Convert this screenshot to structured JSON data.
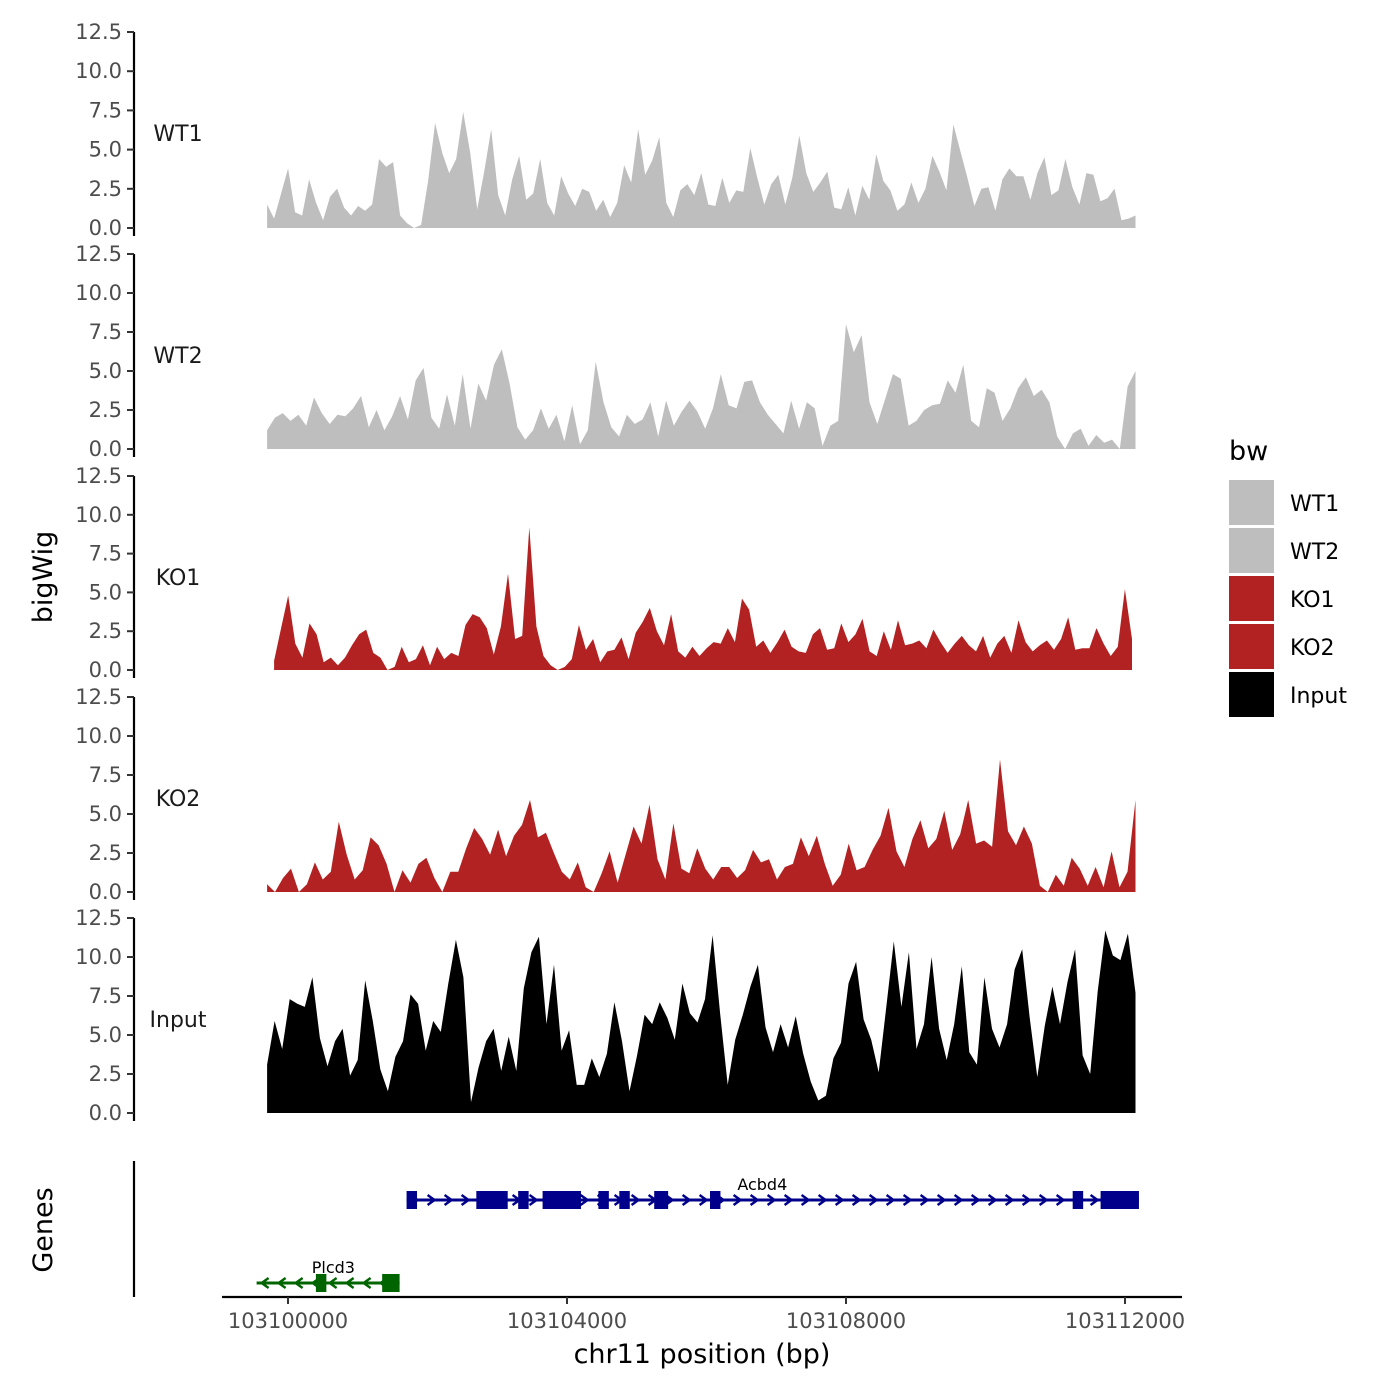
{
  "chart_data": {
    "type": "area",
    "chromosome_axis": {
      "label": "chr11 position (bp)",
      "xlim": [
        103099000,
        103113000
      ],
      "ticks": [
        103100000,
        103104000,
        103108000,
        103112000
      ]
    },
    "y_axis": {
      "label": "bigWig",
      "ylim": [
        0,
        12.5
      ],
      "ticks": [
        0.0,
        2.5,
        5.0,
        7.5,
        10.0,
        12.5
      ],
      "tick_labels": [
        "0.0",
        "2.5",
        "5.0",
        "7.5",
        "10.0",
        "12.5"
      ]
    },
    "genes_label": "Genes",
    "legend": {
      "title": "bw",
      "position": "right",
      "entries": [
        {
          "label": "WT1",
          "color": "#bebebe"
        },
        {
          "label": "WT2",
          "color": "#bebebe"
        },
        {
          "label": "KO1",
          "color": "#b22222"
        },
        {
          "label": "KO2",
          "color": "#b22222"
        },
        {
          "label": "Input",
          "color": "#000000"
        }
      ]
    },
    "series": [
      {
        "name": "WT1",
        "color": "#bebebe",
        "x_start": 103099700,
        "x_end": 103112150,
        "values": [
          1.5,
          0.6,
          2.2,
          3.8,
          1.0,
          0.8,
          3.1,
          1.6,
          0.5,
          2.0,
          2.5,
          1.3,
          0.8,
          1.4,
          1.1,
          1.5,
          4.4,
          3.9,
          4.2,
          0.8,
          0.3,
          0.0,
          0.2,
          3.0,
          6.7,
          4.8,
          3.5,
          4.4,
          7.4,
          4.8,
          1.2,
          3.6,
          6.3,
          2.1,
          0.8,
          3.1,
          4.6,
          1.8,
          2.2,
          4.4,
          1.6,
          0.8,
          3.3,
          2.2,
          1.4,
          2.5,
          2.3,
          1.1,
          1.8,
          0.7,
          1.6,
          4.0,
          2.9,
          6.3,
          3.4,
          4.3,
          5.8,
          1.6,
          0.7,
          2.4,
          2.8,
          2.1,
          3.5,
          1.5,
          1.4,
          3.2,
          1.6,
          2.4,
          2.3,
          5.1,
          3.2,
          1.5,
          2.8,
          3.4,
          1.5,
          3.2,
          5.9,
          3.5,
          2.3,
          2.9,
          3.6,
          1.3,
          1.2,
          2.6,
          0.8,
          2.7,
          1.8,
          4.7,
          3.0,
          2.4,
          1.1,
          1.5,
          2.9,
          1.6,
          2.5,
          4.6,
          3.6,
          2.4,
          6.6,
          4.9,
          3.2,
          1.4,
          2.5,
          2.6,
          1.1,
          3.1,
          3.8,
          3.3,
          3.3,
          1.8,
          3.5,
          4.5,
          2.1,
          2.4,
          4.4,
          2.6,
          1.5,
          3.5,
          3.4,
          1.7,
          1.9,
          2.5,
          0.5,
          0.6,
          0.8
        ]
      },
      {
        "name": "WT2",
        "color": "#bebebe",
        "x_start": 103099700,
        "x_end": 103112150,
        "values": [
          1.2,
          2.0,
          2.3,
          1.8,
          2.2,
          1.5,
          3.3,
          2.3,
          1.6,
          2.2,
          2.1,
          2.6,
          3.4,
          1.4,
          2.5,
          1.2,
          2.1,
          3.4,
          1.9,
          4.4,
          5.2,
          2.0,
          1.3,
          3.5,
          1.5,
          4.8,
          1.3,
          4.2,
          3.1,
          5.4,
          6.4,
          4.2,
          1.4,
          0.6,
          1.2,
          2.6,
          1.3,
          2.2,
          0.5,
          2.8,
          0.3,
          1.2,
          5.6,
          3.0,
          1.4,
          0.8,
          2.2,
          1.6,
          1.9,
          3.0,
          0.8,
          3.1,
          1.5,
          2.4,
          3.1,
          2.4,
          1.3,
          2.6,
          4.8,
          2.8,
          2.6,
          4.3,
          4.4,
          3.0,
          2.2,
          1.6,
          1.0,
          3.1,
          1.3,
          3.0,
          2.6,
          0.2,
          1.5,
          1.8,
          8.0,
          6.2,
          7.3,
          3.0,
          1.6,
          3.2,
          4.8,
          4.5,
          1.5,
          1.8,
          2.5,
          2.8,
          2.9,
          4.4,
          3.6,
          5.4,
          1.8,
          1.4,
          3.9,
          3.6,
          1.8,
          2.6,
          3.9,
          4.6,
          3.4,
          3.8,
          3.0,
          0.8,
          0.0,
          1.0,
          1.3,
          0.2,
          0.9,
          0.4,
          0.6,
          0.0,
          4.0,
          5.0
        ]
      },
      {
        "name": "KO1",
        "color": "#b22222",
        "x_start": 103099800,
        "x_end": 103112100,
        "values": [
          0.6,
          2.7,
          4.8,
          1.7,
          0.8,
          3.0,
          2.3,
          0.5,
          0.8,
          0.3,
          0.8,
          1.6,
          2.3,
          2.6,
          1.1,
          0.8,
          0.0,
          0.2,
          1.5,
          0.5,
          0.7,
          1.6,
          0.3,
          1.5,
          0.7,
          1.1,
          0.9,
          2.9,
          3.6,
          3.4,
          2.7,
          1.0,
          2.8,
          6.2,
          2.0,
          2.2,
          9.2,
          2.8,
          0.9,
          0.3,
          0.0,
          0.2,
          0.7,
          2.9,
          1.3,
          2.0,
          0.5,
          1.2,
          1.3,
          2.1,
          0.7,
          2.4,
          3.1,
          4.0,
          2.5,
          1.6,
          3.6,
          1.2,
          0.8,
          1.5,
          0.9,
          1.4,
          1.8,
          1.7,
          2.7,
          1.8,
          4.6,
          3.9,
          1.5,
          1.9,
          1.1,
          1.8,
          2.6,
          1.5,
          1.2,
          1.1,
          2.3,
          2.7,
          1.3,
          1.4,
          3.0,
          1.8,
          2.3,
          3.3,
          1.2,
          0.9,
          2.5,
          1.3,
          3.2,
          1.6,
          1.7,
          1.9,
          1.4,
          2.6,
          1.8,
          1.1,
          1.7,
          2.2,
          1.6,
          1.2,
          2.2,
          0.8,
          1.7,
          2.2,
          1.1,
          3.2,
          1.8,
          1.2,
          1.6,
          1.9,
          1.3,
          2.0,
          3.4,
          1.3,
          1.4,
          1.4,
          2.7,
          1.7,
          0.9,
          1.5,
          5.2,
          2.0
        ]
      },
      {
        "name": "KO2",
        "color": "#b22222",
        "x_start": 103099700,
        "x_end": 103112150,
        "values": [
          0.5,
          0.0,
          0.9,
          1.5,
          0.0,
          0.5,
          1.9,
          0.8,
          1.3,
          4.5,
          2.4,
          0.8,
          1.4,
          3.5,
          3.0,
          1.8,
          0.0,
          1.4,
          0.6,
          1.8,
          2.2,
          0.9,
          0.0,
          1.3,
          1.3,
          2.8,
          4.1,
          3.4,
          2.4,
          4.0,
          2.3,
          3.6,
          4.3,
          5.9,
          3.5,
          3.8,
          2.5,
          1.3,
          0.8,
          1.9,
          0.3,
          0.0,
          1.2,
          2.6,
          0.6,
          2.4,
          4.2,
          3.1,
          5.6,
          2.1,
          0.8,
          4.4,
          1.5,
          1.2,
          2.8,
          1.5,
          0.8,
          1.6,
          1.6,
          0.9,
          1.4,
          2.7,
          1.9,
          2.1,
          0.8,
          1.6,
          1.8,
          3.5,
          2.3,
          3.6,
          1.8,
          0.4,
          1.1,
          3.1,
          1.4,
          1.6,
          2.7,
          3.6,
          5.4,
          2.6,
          1.6,
          3.4,
          4.6,
          2.8,
          3.4,
          5.2,
          2.7,
          3.7,
          5.9,
          3.1,
          3.3,
          2.9,
          8.5,
          3.9,
          3.0,
          4.2,
          3.1,
          0.4,
          0.0,
          1.1,
          0.4,
          2.2,
          1.5,
          0.4,
          1.6,
          0.3,
          2.6,
          0.3,
          1.3,
          5.9
        ]
      },
      {
        "name": "Input",
        "color": "#000000",
        "x_start": 103099700,
        "x_end": 103112150,
        "values": [
          3.1,
          5.9,
          4.1,
          7.3,
          7.0,
          6.8,
          8.7,
          4.8,
          3.0,
          4.6,
          5.4,
          2.4,
          3.4,
          8.5,
          5.9,
          2.8,
          1.4,
          3.6,
          4.6,
          7.6,
          7.0,
          4.0,
          5.9,
          5.2,
          8.3,
          11.1,
          8.7,
          0.7,
          2.9,
          4.6,
          5.4,
          2.7,
          4.9,
          2.7,
          8.0,
          10.3,
          11.3,
          5.7,
          9.5,
          4.0,
          5.3,
          1.8,
          1.8,
          3.5,
          2.3,
          3.8,
          7.1,
          4.6,
          1.4,
          3.7,
          6.3,
          5.7,
          7.1,
          6.1,
          4.7,
          8.3,
          6.4,
          5.8,
          7.3,
          11.4,
          6.4,
          1.8,
          4.7,
          6.3,
          8.1,
          9.5,
          5.5,
          3.9,
          5.7,
          4.2,
          6.2,
          3.8,
          2.0,
          0.8,
          1.1,
          3.5,
          4.5,
          8.3,
          9.7,
          6.0,
          4.7,
          2.6,
          6.8,
          11.0,
          6.8,
          10.3,
          4.1,
          5.7,
          10.0,
          5.4,
          3.4,
          5.7,
          9.4,
          3.9,
          3.1,
          8.7,
          5.4,
          4.2,
          5.7,
          9.2,
          10.5,
          6.1,
          2.3,
          5.6,
          8.1,
          5.7,
          8.4,
          10.5,
          3.7,
          2.5,
          7.8,
          11.7,
          10.1,
          9.8,
          11.5,
          7.7
        ]
      }
    ],
    "genes": [
      {
        "name": "Acbd4",
        "strand": "+",
        "color": "#00008b",
        "start": 103101700,
        "end": 103112200,
        "exons": [
          [
            103101700,
            103101850
          ],
          [
            103102700,
            103103150
          ],
          [
            103103300,
            103103450
          ],
          [
            103103650,
            103104200
          ],
          [
            103104450,
            103104600
          ],
          [
            103104750,
            103104900
          ],
          [
            103105250,
            103105450
          ],
          [
            103106050,
            103106200
          ],
          [
            103111250,
            103111400
          ],
          [
            103111650,
            103112200
          ]
        ]
      },
      {
        "name": "Plcd3",
        "strand": "-",
        "color": "#006400",
        "start": 103099550,
        "end": 103101600,
        "exons": [
          [
            103100400,
            103100550
          ],
          [
            103101350,
            103101600
          ]
        ]
      }
    ]
  }
}
